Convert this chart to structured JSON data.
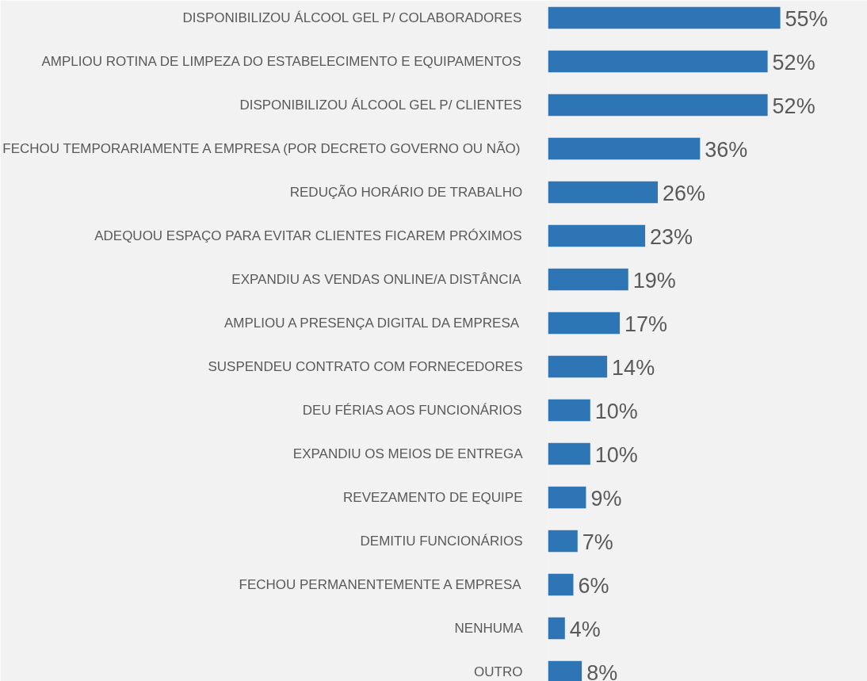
{
  "chart_data": {
    "type": "bar",
    "orientation": "horizontal",
    "categories": [
      "DISPONIBILIZOU ÁLCOOL GEL P/ COLABORADORES",
      "AMPLIOU ROTINA DE LIMPEZA DO ESTABELECIMENTO E EQUIPAMENTOS",
      "DISPONIBILIZOU ÁLCOOL GEL P/ CLIENTES",
      "FECHOU TEMPORARIAMENTE A EMPRESA (POR DECRETO GOVERNO OU NÃO)",
      "REDUÇÃO HORÁRIO DE TRABALHO",
      "ADEQUOU ESPAÇO PARA EVITAR CLIENTES FICAREM PRÓXIMOS",
      "EXPANDIU AS VENDAS ONLINE/A DISTÂNCIA",
      "AMPLIOU A PRESENÇA DIGITAL DA EMPRESA",
      "SUSPENDEU CONTRATO COM FORNECEDORES",
      "DEU FÉRIAS AOS FUNCIONÁRIOS",
      "EXPANDIU OS MEIOS DE ENTREGA",
      "REVEZAMENTO DE EQUIPE",
      "DEMITIU FUNCIONÁRIOS",
      "FECHOU PERMANENTEMENTE A EMPRESA",
      "NENHUMA",
      "OUTRO"
    ],
    "values": [
      55,
      52,
      52,
      36,
      26,
      23,
      19,
      17,
      14,
      10,
      10,
      9,
      7,
      6,
      4,
      8
    ],
    "value_labels": [
      "55%",
      "52%",
      "52%",
      "36%",
      "26%",
      "23%",
      "19%",
      "17%",
      "14%",
      "10%",
      "10%",
      "9%",
      "7%",
      "6%",
      "4%",
      "8%"
    ],
    "color": "#2e75b6"
  }
}
